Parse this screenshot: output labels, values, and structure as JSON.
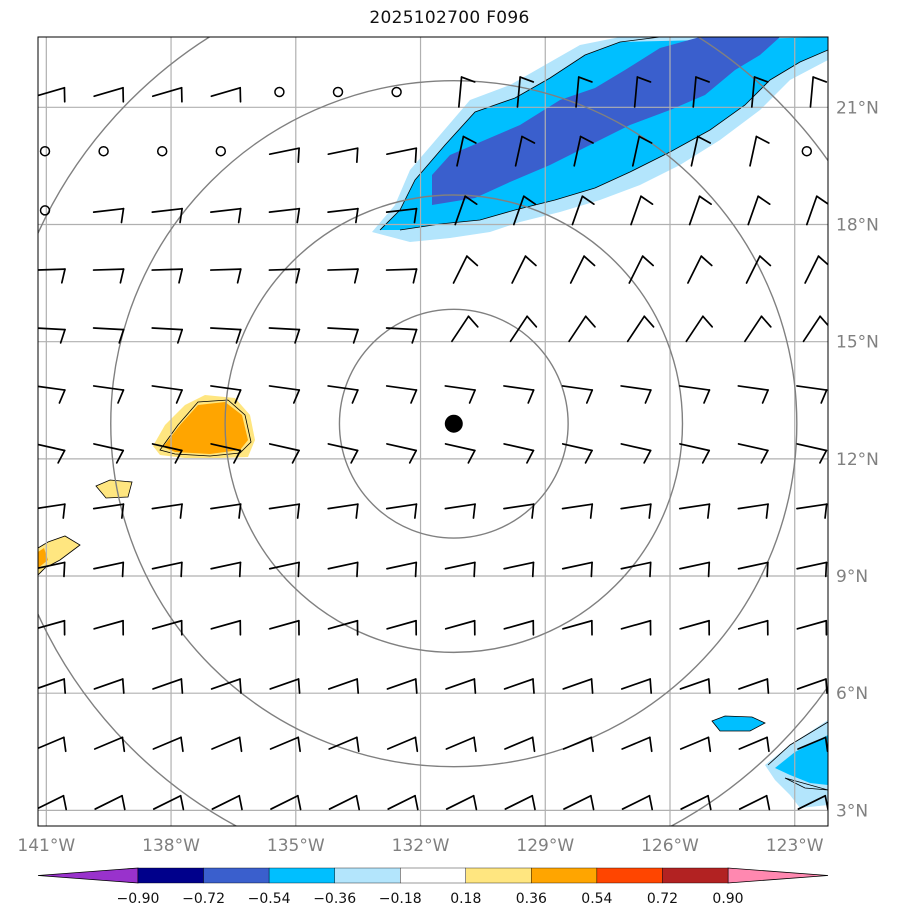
{
  "title": "2025102700 F096",
  "map": {
    "lon_range": [
      -141.2,
      -122.2
    ],
    "lat_range": [
      2.6,
      22.8
    ],
    "lon_ticks": [
      {
        "value": -141,
        "label": "141°W"
      },
      {
        "value": -138,
        "label": "138°W"
      },
      {
        "value": -135,
        "label": "135°W"
      },
      {
        "value": -132,
        "label": "132°W"
      },
      {
        "value": -129,
        "label": "129°W"
      },
      {
        "value": -126,
        "label": "126°W"
      },
      {
        "value": -123,
        "label": "123°W"
      }
    ],
    "lat_ticks": [
      {
        "value": 3,
        "label": "3°N"
      },
      {
        "value": 6,
        "label": "6°N"
      },
      {
        "value": 9,
        "label": "9°N"
      },
      {
        "value": 12,
        "label": "12°N"
      },
      {
        "value": 15,
        "label": "15°N"
      },
      {
        "value": 18,
        "label": "18°N"
      },
      {
        "value": 21,
        "label": "21°N"
      }
    ],
    "center": {
      "lon": -131.2,
      "lat": 12.9
    },
    "range_rings_deg": [
      2.75,
      5.5,
      8.25,
      11.0
    ],
    "grid_color": "#b0b0b0",
    "ring_color": "#808080"
  },
  "colorbar": {
    "levels": [
      "−0.90",
      "−0.72",
      "−0.54",
      "−0.36",
      "−0.18",
      "0.18",
      "0.36",
      "0.54",
      "0.72",
      "0.90"
    ],
    "colors": [
      "#9932cc",
      "#00008b",
      "#3a5fcd",
      "#00bfff",
      "#b3e5fc",
      "#ffffff",
      "#ffe680",
      "#ffa500",
      "#ff4500",
      "#b22222",
      "#ff88b0"
    ]
  }
}
